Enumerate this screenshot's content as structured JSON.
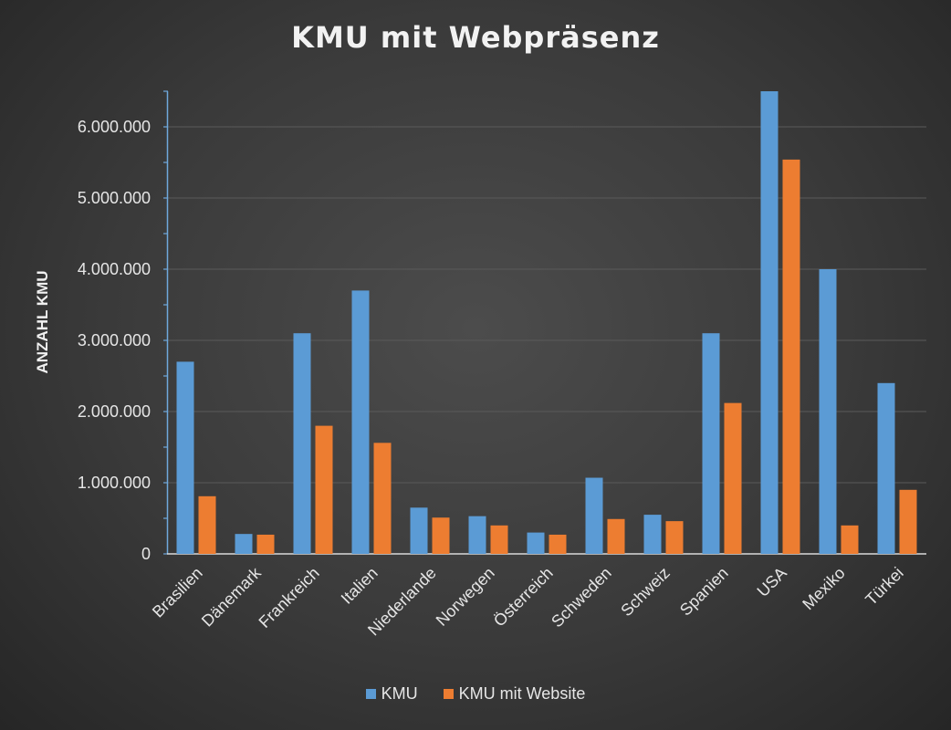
{
  "chart_data": {
    "type": "bar",
    "title": "KMU mit Webpräsenz",
    "xlabel": "",
    "ylabel": "ANZAHL KMU",
    "ylim": [
      0,
      6500000
    ],
    "yticks": [
      0,
      1000000,
      2000000,
      3000000,
      4000000,
      5000000,
      6000000
    ],
    "ytick_labels": [
      "0",
      "1.000.000",
      "2.000.000",
      "3.000.000",
      "4.000.000",
      "5.000.000",
      "6.000.000"
    ],
    "grid": true,
    "legend_position": "bottom",
    "categories": [
      "Brasilien",
      "Dänemark",
      "Frankreich",
      "Italien",
      "Niederlande",
      "Norwegen",
      "Österreich",
      "Schweden",
      "Schweiz",
      "Spanien",
      "USA",
      "Mexiko",
      "Türkei"
    ],
    "series": [
      {
        "name": "KMU",
        "color": "#5b9bd5",
        "values": [
          2700000,
          280000,
          3100000,
          3700000,
          650000,
          530000,
          300000,
          1070000,
          550000,
          3100000,
          6500000,
          4000000,
          2400000
        ]
      },
      {
        "name": "KMU mit Website",
        "color": "#ed7d31",
        "values": [
          810000,
          270000,
          1800000,
          1560000,
          510000,
          400000,
          270000,
          490000,
          460000,
          2120000,
          5540000,
          400000,
          900000
        ]
      }
    ]
  }
}
